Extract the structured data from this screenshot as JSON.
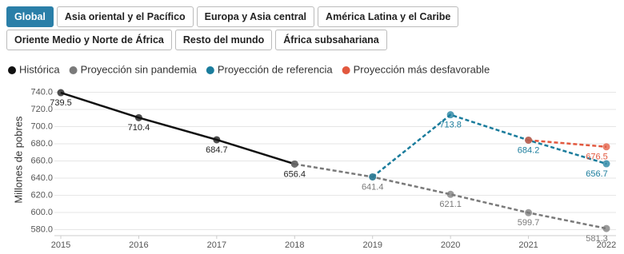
{
  "tabs": [
    {
      "label": "Global",
      "active": true
    },
    {
      "label": "Asia oriental y el Pacífico",
      "active": false
    },
    {
      "label": "Europa y Asia central",
      "active": false
    },
    {
      "label": "América Latina y el Caribe",
      "active": false
    },
    {
      "label": "Oriente Medio y Norte de África",
      "active": false
    },
    {
      "label": "Resto del mundo",
      "active": false
    },
    {
      "label": "África subsahariana",
      "active": false
    }
  ],
  "chart_data": {
    "type": "line",
    "y_label": "Millones de pobres",
    "x": [
      2015,
      2016,
      2017,
      2018,
      2019,
      2020,
      2021,
      2022
    ],
    "xlim": [
      2015,
      2022
    ],
    "xticks": [
      2015,
      2016,
      2017,
      2018,
      2019,
      2020,
      2021,
      2022
    ],
    "ylim": [
      573,
      747
    ],
    "yticks": [
      {
        "value": 580,
        "label": "580.0"
      },
      {
        "value": 600,
        "label": "600.0"
      },
      {
        "value": 620,
        "label": "620.0"
      },
      {
        "value": 640,
        "label": "640.0"
      },
      {
        "value": 660,
        "label": "660.0"
      },
      {
        "value": 680,
        "label": "680.0"
      },
      {
        "value": 700,
        "label": "700.0"
      },
      {
        "value": 720,
        "label": "720.0"
      },
      {
        "value": 740,
        "label": "740.0"
      }
    ],
    "grid": true,
    "legend": "top-left",
    "series": [
      {
        "name": "Histórica",
        "color": "#111111",
        "style": "solid",
        "values": [
          739.5,
          710.4,
          684.7,
          656.4,
          null,
          null,
          null,
          null
        ],
        "value_labels": [
          "739.5",
          "710.4",
          "684.7",
          "656.4",
          null,
          null,
          null,
          null
        ]
      },
      {
        "name": "Proyección sin pandemia",
        "color": "#7a7a7a",
        "style": "dashed",
        "values": [
          null,
          null,
          null,
          656.4,
          641.4,
          621.1,
          599.7,
          581.3
        ],
        "value_labels": [
          null,
          null,
          null,
          null,
          "641.4",
          "621.1",
          "599.7",
          "581.3"
        ]
      },
      {
        "name": "Proyección de referencia",
        "color": "#1a7c9c",
        "style": "dashed",
        "values": [
          null,
          null,
          null,
          null,
          641.4,
          713.8,
          684.2,
          656.7
        ],
        "value_labels": [
          null,
          null,
          null,
          null,
          null,
          "713.8",
          "684.2",
          "656.7"
        ]
      },
      {
        "name": "Proyección más desfavorable",
        "color": "#e2583e",
        "style": "dashed",
        "values": [
          null,
          null,
          null,
          null,
          null,
          null,
          684.2,
          676.5
        ],
        "value_labels": [
          null,
          null,
          null,
          null,
          null,
          null,
          null,
          "676.5"
        ]
      }
    ]
  }
}
